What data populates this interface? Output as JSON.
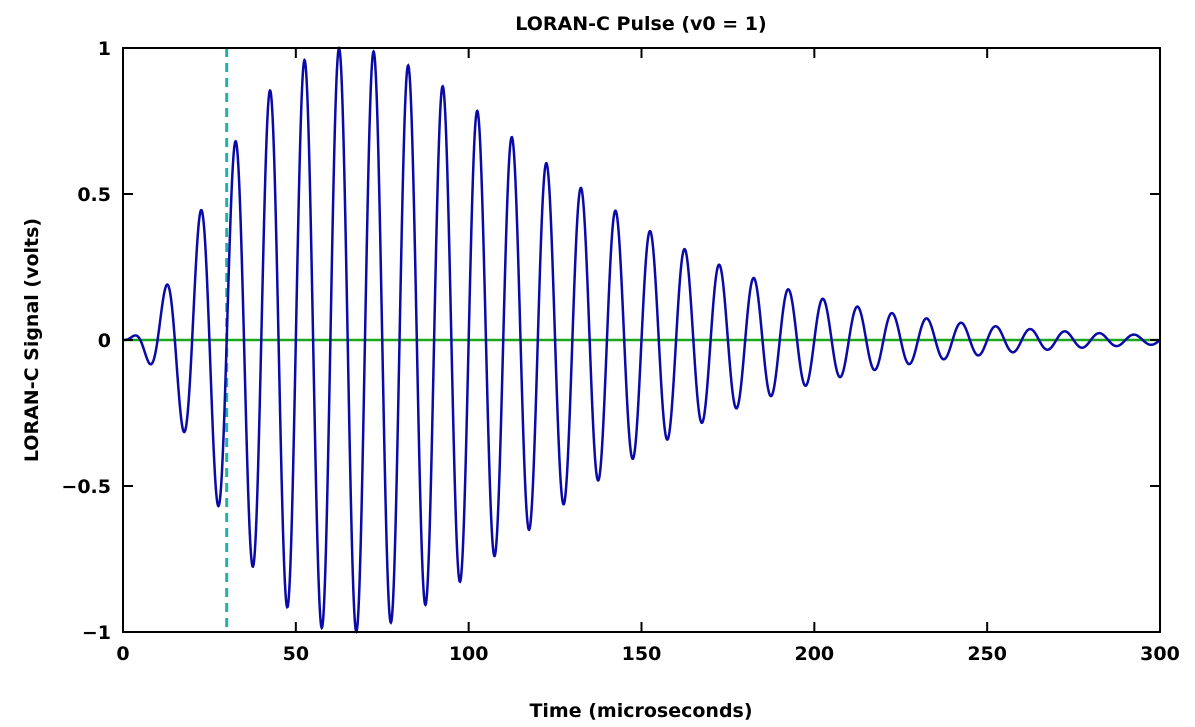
{
  "chart_data": {
    "type": "line",
    "title": "LORAN-C Pulse (v0 = 1)",
    "xlabel": "Time (microseconds)",
    "ylabel": "LORAN-C Signal (volts)",
    "xlim": [
      0,
      300
    ],
    "ylim": [
      -1,
      1
    ],
    "xticks": [
      0,
      50,
      100,
      150,
      200,
      250,
      300
    ],
    "yticks": [
      -1,
      -0.5,
      0,
      0.5,
      1
    ],
    "xtick_labels": [
      "0",
      "50",
      "100",
      "150",
      "200",
      "250",
      "300"
    ],
    "ytick_labels": [
      "−1",
      "−0.5",
      "0",
      "0.5",
      "1"
    ],
    "grid": false,
    "signal": {
      "color": "#0a0aa8",
      "carrier_frequency_khz": 100,
      "envelope": "t^2 * exp(-2t/65), peak at 65 us",
      "envelope_peak_time": 65,
      "amplitude_v0": 1,
      "x_start": 0,
      "x_end": 300
    },
    "zero_line": {
      "y": 0,
      "color": "#1aa81a"
    },
    "marker_line": {
      "x": 30,
      "color": "#20b2aa",
      "style": "dashed"
    }
  }
}
